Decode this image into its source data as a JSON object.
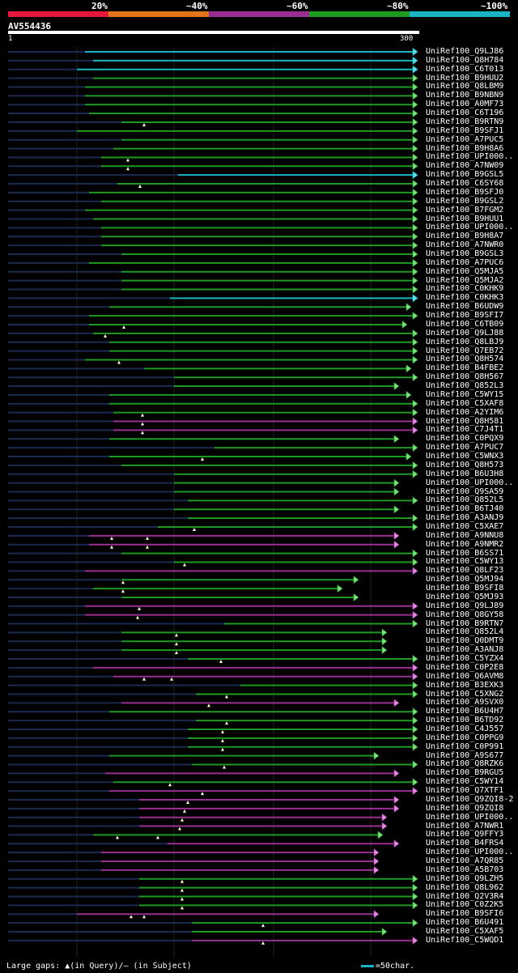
{
  "legend": {
    "colors": [
      "#e5173b",
      "#e2741c",
      "#9a2f93",
      "#1e9a22",
      "#19b5c3"
    ],
    "labels": [
      "20%",
      "~40%",
      "~60%",
      "~80%",
      "~100%"
    ]
  },
  "query": {
    "id": "AV554436",
    "start": "1",
    "end": "300"
  },
  "footer": {
    "gaps_text": "Large gaps: ▲(in Query)/— (in Subject)",
    "scale_text": "=50char."
  },
  "hits": [
    {
      "label": "UniRef100_Q9LJ86",
      "start": 105,
      "color": "cyan",
      "tri": []
    },
    {
      "label": "UniRef100_Q8H784",
      "start": 115,
      "color": "cyan",
      "tri": []
    },
    {
      "label": "UniRef100_C6T013",
      "start": 95,
      "color": "cyan",
      "tri": []
    },
    {
      "label": "UniRef100_B9HUU2",
      "start": 115,
      "color": "green",
      "tri": []
    },
    {
      "label": "UniRef100_Q8LBM9",
      "start": 105,
      "color": "green",
      "tri": []
    },
    {
      "label": "UniRef100_B9NBN9",
      "start": 105,
      "color": "green",
      "tri": []
    },
    {
      "label": "UniRef100_A0MF73",
      "start": 105,
      "color": "green",
      "tri": []
    },
    {
      "label": "UniRef100_C6T196",
      "start": 110,
      "color": "green",
      "tri": []
    },
    {
      "label": "UniRef100_B9RTN9",
      "start": 150,
      "color": "green",
      "tri": [
        178
      ]
    },
    {
      "label": "UniRef100_B9SFJ1",
      "start": 95,
      "color": "green",
      "tri": []
    },
    {
      "label": "UniRef100_A7PUC5",
      "start": 150,
      "color": "green",
      "tri": []
    },
    {
      "label": "UniRef100_B9H8A6",
      "start": 140,
      "color": "green",
      "tri": []
    },
    {
      "label": "UniRef100_UPI000..",
      "start": 125,
      "color": "green",
      "tri": [
        158
      ]
    },
    {
      "label": "UniRef100_A7NW09",
      "start": 125,
      "color": "green",
      "tri": [
        158
      ]
    },
    {
      "label": "UniRef100_B9GSL5",
      "start": 220,
      "color": "cyan",
      "tri": []
    },
    {
      "label": "UniRef100_C6SY68",
      "start": 145,
      "color": "green",
      "tri": [
        173
      ]
    },
    {
      "label": "UniRef100_B9SFJ0",
      "start": 110,
      "color": "green",
      "tri": []
    },
    {
      "label": "UniRef100_B9GSL2",
      "start": 125,
      "color": "green",
      "tri": []
    },
    {
      "label": "UniRef100_B7FGM2",
      "start": 105,
      "color": "green",
      "tri": []
    },
    {
      "label": "UniRef100_B9HUU1",
      "start": 115,
      "color": "green",
      "tri": []
    },
    {
      "label": "UniRef100_UPI000..",
      "start": 125,
      "color": "green",
      "tri": []
    },
    {
      "label": "UniRef100_B9H8A7",
      "start": 125,
      "color": "green",
      "tri": []
    },
    {
      "label": "UniRef100_A7NWR0",
      "start": 125,
      "color": "green",
      "tri": []
    },
    {
      "label": "UniRef100_B9GSL3",
      "start": 150,
      "color": "green",
      "tri": []
    },
    {
      "label": "UniRef100_A7PUC6",
      "start": 110,
      "color": "green",
      "tri": []
    },
    {
      "label": "UniRef100_Q5MJA5",
      "start": 150,
      "color": "green",
      "tri": []
    },
    {
      "label": "UniRef100_Q5MJA2",
      "start": 150,
      "color": "green",
      "tri": []
    },
    {
      "label": "UniRef100_C0KHK9",
      "start": 150,
      "color": "green",
      "tri": []
    },
    {
      "label": "UniRef100_C0KHK3",
      "start": 210,
      "color": "cyan",
      "tri": []
    },
    {
      "label": "UniRef100_B6UDW9",
      "start": 135,
      "color": "green",
      "end": 508,
      "tri": []
    },
    {
      "label": "UniRef100_B9SFI7",
      "start": 110,
      "color": "green",
      "tri": []
    },
    {
      "label": "UniRef100_C6TB09",
      "start": 110,
      "color": "green",
      "end": 503,
      "tri": [
        153
      ]
    },
    {
      "label": "UniRef100_Q9LJ88",
      "start": 115,
      "color": "green",
      "tri": [
        130
      ]
    },
    {
      "label": "UniRef100_Q8LBJ9",
      "start": 135,
      "color": "green",
      "tri": []
    },
    {
      "label": "UniRef100_Q7EB72",
      "start": 135,
      "color": "green",
      "tri": []
    },
    {
      "label": "UniRef100_Q8H574",
      "start": 105,
      "color": "green",
      "tri": [
        147
      ]
    },
    {
      "label": "UniRef100_B4FBE2",
      "start": 178,
      "color": "green",
      "end": 508,
      "tri": []
    },
    {
      "label": "UniRef100_Q8H567",
      "start": 215,
      "color": "green",
      "tri": []
    },
    {
      "label": "UniRef100_Q852L3",
      "start": 215,
      "color": "green",
      "end": 493,
      "tri": []
    },
    {
      "label": "UniRef100_C5WY15",
      "start": 135,
      "color": "green",
      "end": 508,
      "tri": []
    },
    {
      "label": "UniRef100_C5XAF8",
      "start": 135,
      "color": "green",
      "tri": []
    },
    {
      "label": "UniRef100_A2YIM6",
      "start": 140,
      "color": "green",
      "tri": [
        176
      ]
    },
    {
      "label": "UniRef100_Q8H581",
      "start": 140,
      "color": "purple",
      "tri": [
        176
      ]
    },
    {
      "label": "UniRef100_C7J4T1",
      "start": 140,
      "color": "purple",
      "tri": [
        176
      ]
    },
    {
      "label": "UniRef100_C0PQX9",
      "start": 135,
      "color": "green",
      "end": 493,
      "tri": []
    },
    {
      "label": "UniRef100_A7PUC7",
      "start": 265,
      "color": "green",
      "tri": []
    },
    {
      "label": "UniRef100_C5WNX3",
      "start": 135,
      "color": "green",
      "end": 508,
      "tri": [
        250
      ]
    },
    {
      "label": "UniRef100_Q8H573",
      "start": 150,
      "color": "green",
      "tri": []
    },
    {
      "label": "UniRef100_B6U3H8",
      "start": 215,
      "color": "green",
      "tri": []
    },
    {
      "label": "UniRef100_UPI000..",
      "start": 215,
      "color": "green",
      "end": 493,
      "tri": []
    },
    {
      "label": "UniRef100_Q9SA59",
      "start": 215,
      "color": "green",
      "end": 493,
      "tri": []
    },
    {
      "label": "UniRef100_Q852L5",
      "start": 232,
      "color": "green",
      "tri": []
    },
    {
      "label": "UniRef100_B6TJ40",
      "start": 215,
      "color": "green",
      "end": 493,
      "tri": []
    },
    {
      "label": "UniRef100_A3ANJ9",
      "start": 232,
      "color": "green",
      "tri": []
    },
    {
      "label": "UniRef100_C5XAE7",
      "start": 195,
      "color": "green",
      "tri": [
        240
      ]
    },
    {
      "label": "UniRef100_A9NNU8",
      "start": 110,
      "color": "purple",
      "end": 493,
      "tri": [
        138,
        182
      ]
    },
    {
      "label": "UniRef100_A9NMR2",
      "start": 110,
      "color": "purple",
      "end": 493,
      "tri": [
        138,
        182
      ]
    },
    {
      "label": "UniRef100_B6SS71",
      "start": 150,
      "color": "green",
      "tri": []
    },
    {
      "label": "UniRef100_C5WY13",
      "start": 215,
      "color": "green",
      "tri": [
        228
      ]
    },
    {
      "label": "UniRef100_Q8LF23",
      "start": 105,
      "color": "purple",
      "tri": []
    },
    {
      "label": "UniRef100_Q5MJ94",
      "start": 150,
      "color": "green",
      "end": 443,
      "tri": [
        152
      ]
    },
    {
      "label": "UniRef100_B9SFI8",
      "start": 115,
      "color": "green",
      "end": 423,
      "tri": [
        152
      ]
    },
    {
      "label": "UniRef100_Q5MJ93",
      "start": 150,
      "color": "green",
      "end": 443,
      "tri": []
    },
    {
      "label": "UniRef100_Q9LJ89",
      "start": 105,
      "color": "purple",
      "tri": [
        172
      ]
    },
    {
      "label": "UniRef100_Q8GY58",
      "start": 105,
      "color": "purple",
      "tri": [
        170
      ]
    },
    {
      "label": "UniRef100_B9RTN7",
      "start": 277,
      "color": "green",
      "tri": []
    },
    {
      "label": "UniRef100_Q852L4",
      "start": 150,
      "color": "green",
      "end": 478,
      "tri": [
        218
      ]
    },
    {
      "label": "UniRef100_Q0DMT9",
      "start": 150,
      "color": "green",
      "end": 478,
      "tri": [
        218
      ]
    },
    {
      "label": "UniRef100_A3ANJ8",
      "start": 150,
      "color": "green",
      "end": 478,
      "tri": [
        218
      ]
    },
    {
      "label": "UniRef100_C5YZX4",
      "start": 232,
      "color": "green",
      "tri": [
        273
      ]
    },
    {
      "label": "UniRef100_C0P2E8",
      "start": 115,
      "color": "purple",
      "tri": []
    },
    {
      "label": "UniRef100_Q6AVM8",
      "start": 140,
      "color": "purple",
      "tri": [
        178,
        212
      ]
    },
    {
      "label": "UniRef100_B3EXK3",
      "start": 297,
      "color": "green",
      "tri": []
    },
    {
      "label": "UniRef100_C5XNG2",
      "start": 242,
      "color": "green",
      "tri": [
        280
      ]
    },
    {
      "label": "UniRef100_A9SVX0",
      "start": 150,
      "color": "purple",
      "end": 493,
      "tri": [
        258
      ]
    },
    {
      "label": "UniRef100_B6U4H7",
      "start": 135,
      "color": "green",
      "tri": []
    },
    {
      "label": "UniRef100_B6TD92",
      "start": 242,
      "color": "green",
      "tri": [
        280
      ]
    },
    {
      "label": "UniRef100_C4J557",
      "start": 232,
      "color": "green",
      "tri": [
        275
      ]
    },
    {
      "label": "UniRef100_C0PPG9",
      "start": 232,
      "color": "green",
      "tri": [
        275
      ]
    },
    {
      "label": "UniRef100_C0P991",
      "start": 232,
      "color": "green",
      "tri": [
        275
      ]
    },
    {
      "label": "UniRef100_A9S677",
      "start": 135,
      "color": "green",
      "end": 468,
      "tri": []
    },
    {
      "label": "UniRef100_Q8RZK6",
      "start": 237,
      "color": "green",
      "tri": [
        277
      ]
    },
    {
      "label": "UniRef100_B9RGU5",
      "start": 130,
      "color": "purple",
      "end": 493,
      "tri": []
    },
    {
      "label": "UniRef100_C5WY14",
      "start": 140,
      "color": "green",
      "tri": [
        210
      ]
    },
    {
      "label": "UniRef100_Q7XTF1",
      "start": 135,
      "color": "purple",
      "tri": [
        250
      ]
    },
    {
      "label": "UniRef100_Q9ZQI8-2",
      "start": 172,
      "color": "purple",
      "end": 493,
      "tri": [
        232
      ]
    },
    {
      "label": "UniRef100_Q9ZQI8",
      "start": 172,
      "color": "purple",
      "end": 493,
      "tri": [
        228
      ]
    },
    {
      "label": "UniRef100_UPI000..",
      "start": 172,
      "color": "purple",
      "end": 478,
      "tri": [
        225
      ]
    },
    {
      "label": "UniRef100_A7NWR1",
      "start": 172,
      "color": "purple",
      "end": 478,
      "tri": [
        222
      ]
    },
    {
      "label": "UniRef100_Q9FFY3",
      "start": 115,
      "color": "green",
      "end": 473,
      "tri": [
        145,
        195
      ]
    },
    {
      "label": "UniRef100_B4FRS4",
      "start": 207,
      "color": "purple",
      "end": 493,
      "tri": []
    },
    {
      "label": "UniRef100_UPI000..",
      "start": 125,
      "color": "purple",
      "end": 468,
      "tri": []
    },
    {
      "label": "UniRef100_A7QR85",
      "start": 125,
      "color": "purple",
      "end": 468,
      "tri": []
    },
    {
      "label": "UniRef100_A5B703",
      "start": 125,
      "color": "purple",
      "end": 468,
      "tri": []
    },
    {
      "label": "UniRef100_Q9LZH5",
      "start": 172,
      "color": "green",
      "tri": [
        225
      ]
    },
    {
      "label": "UniRef100_Q8L962",
      "start": 172,
      "color": "green",
      "tri": [
        225
      ]
    },
    {
      "label": "UniRef100_Q2V3R4",
      "start": 172,
      "color": "green",
      "tri": [
        225
      ]
    },
    {
      "label": "UniRef100_C0Z2K5",
      "start": 172,
      "color": "green",
      "tri": [
        225
      ]
    },
    {
      "label": "UniRef100_B9SFI6",
      "start": 95,
      "color": "purple",
      "end": 468,
      "tri": [
        162,
        178
      ]
    },
    {
      "label": "UniRef100_B6U491",
      "start": 237,
      "color": "green",
      "tri": [
        325
      ]
    },
    {
      "label": "UniRef100_C5XAF5",
      "start": 237,
      "color": "green",
      "end": 478,
      "tri": []
    },
    {
      "label": "UniRef100_C5WQD1",
      "start": 237,
      "color": "purple",
      "tri": [
        325
      ]
    }
  ]
}
